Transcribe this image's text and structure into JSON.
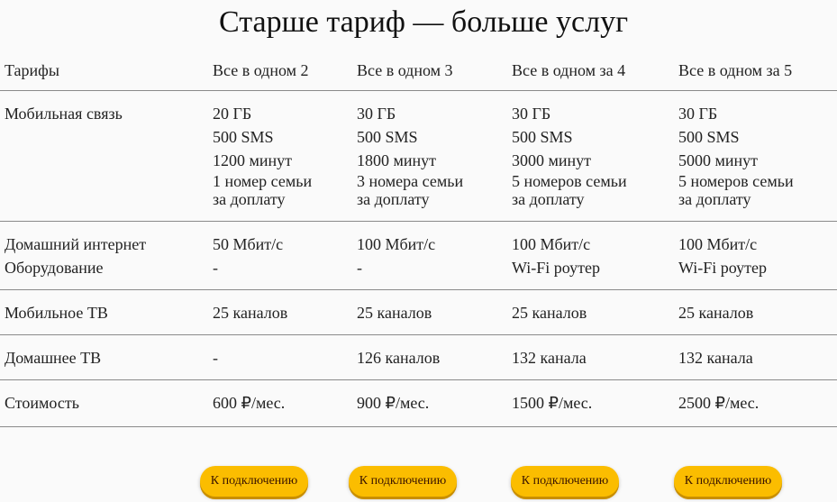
{
  "title": "Старше тариф — больше услуг",
  "header": [
    "Тарифы",
    "Все в одном 2",
    "Все в одном 3",
    "Все в одном за 4",
    "Все в одном за 5"
  ],
  "rows": [
    {
      "label": [
        "Мобильная связь"
      ],
      "cells": [
        [
          "20 ГБ",
          "500 SMS",
          "1200 минут",
          "1 номер семьи",
          "за доплату"
        ],
        [
          "30 ГБ",
          "500 SMS",
          "1800 минут",
          "3 номера семьи",
          "за доплату"
        ],
        [
          "30 ГБ",
          "500 SMS",
          "3000 минут",
          "5 номеров семьи",
          "за доплату"
        ],
        [
          "30 ГБ",
          "500 SMS",
          "5000 минут",
          "5 номеров семьи",
          "за доплату"
        ]
      ]
    },
    {
      "label": [
        "Домашний интернет",
        "Оборудование"
      ],
      "cells": [
        [
          "50 Мбит/с",
          "-"
        ],
        [
          "100 Мбит/с",
          "-"
        ],
        [
          "100 Мбит/с",
          "Wi-Fi роутер"
        ],
        [
          "100 Мбит/с",
          "Wi-Fi роутер"
        ]
      ]
    },
    {
      "label": [
        "Мобильное ТВ"
      ],
      "cells": [
        [
          "25 каналов"
        ],
        [
          "25 каналов"
        ],
        [
          "25 каналов"
        ],
        [
          "25 каналов"
        ]
      ]
    },
    {
      "label": [
        "Домашнее ТВ"
      ],
      "cells": [
        [
          "-"
        ],
        [
          "126 каналов"
        ],
        [
          "132 канала"
        ],
        [
          "132 канала"
        ]
      ]
    },
    {
      "label": [
        "Стоимость"
      ],
      "cells": [
        [
          "600 ₽/мес."
        ],
        [
          "900 ₽/мес."
        ],
        [
          " 1500 ₽/мес."
        ],
        [
          "2500 ₽/мес."
        ]
      ]
    }
  ],
  "button_label": "К подключению",
  "colors": {
    "accent": "#fbbd00",
    "background": "#fafafa"
  }
}
